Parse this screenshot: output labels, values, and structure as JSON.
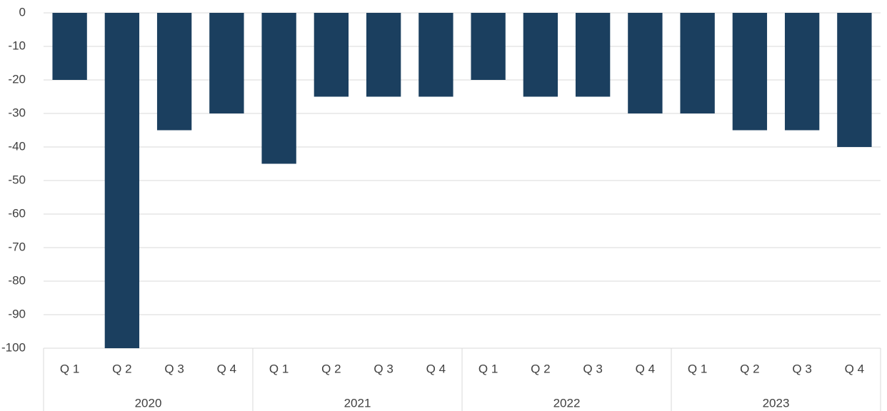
{
  "chart_data": {
    "type": "bar",
    "groups": [
      {
        "label": "2020",
        "categories": [
          "Q 1",
          "Q 2",
          "Q 3",
          "Q 4"
        ]
      },
      {
        "label": "2021",
        "categories": [
          "Q 1",
          "Q 2",
          "Q 3",
          "Q 4"
        ]
      },
      {
        "label": "2022",
        "categories": [
          "Q 1",
          "Q 2",
          "Q 3",
          "Q 4"
        ]
      },
      {
        "label": "2023",
        "categories": [
          "Q 1",
          "Q 2",
          "Q 3",
          "Q 4"
        ]
      }
    ],
    "values": [
      -20,
      -100,
      -35,
      -30,
      -45,
      -25,
      -25,
      -25,
      -20,
      -25,
      -25,
      -30,
      -30,
      -35,
      -35,
      -40
    ],
    "ylim": [
      -100,
      0
    ],
    "yticks": [
      "0",
      "-10",
      "-20",
      "-30",
      "-40",
      "-50",
      "-60",
      "-70",
      "-80",
      "-90",
      "-100"
    ],
    "grid": true,
    "colors": {
      "bar": "#1b3f5f",
      "grid": "#d9d9d9",
      "text": "#404040"
    }
  }
}
